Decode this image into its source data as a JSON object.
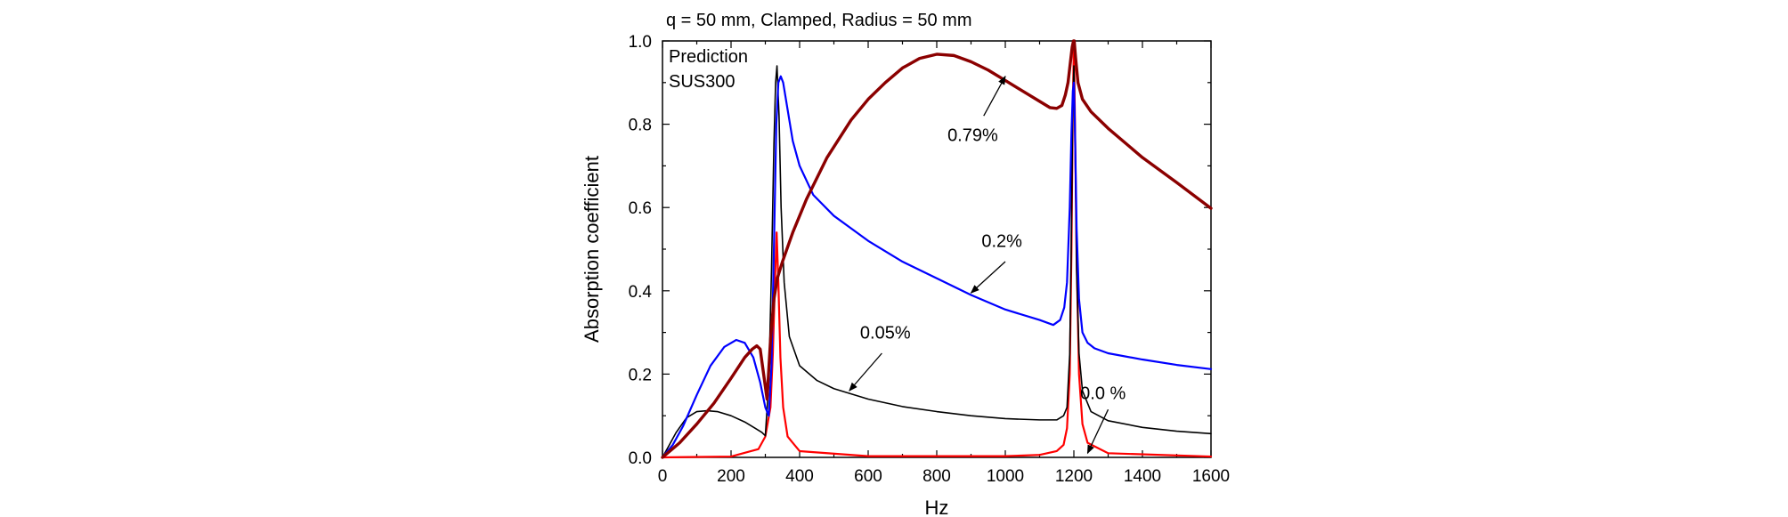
{
  "chart_data": {
    "type": "line",
    "title": "q = 50 mm, Clamped, Radius = 50 mm",
    "xlabel": "Hz",
    "ylabel": "Absorption coefficient",
    "xlim": [
      0,
      1600
    ],
    "ylim": [
      0,
      1.0
    ],
    "xticks": [
      0,
      200,
      400,
      600,
      800,
      1000,
      1200,
      1400,
      1600
    ],
    "xtick_labels": [
      "0",
      "200",
      "400",
      "600",
      "800",
      "1000",
      "1200",
      "1400",
      "1600"
    ],
    "yticks": [
      0,
      0.2,
      0.4,
      0.6,
      0.8,
      1.0
    ],
    "ytick_labels": [
      "0.0",
      "0.2",
      "0.4",
      "0.6",
      "0.8",
      "1.0"
    ],
    "inset_lines": [
      "Prediction",
      "SUS300"
    ],
    "grid": false,
    "series": [
      {
        "name": "0.0 %",
        "color": "#ff0000",
        "stroke_weight": "medium",
        "x": [
          0,
          200,
          280,
          300,
          315,
          322,
          328,
          333,
          338,
          344,
          352,
          365,
          400,
          600,
          1000,
          1100,
          1150,
          1170,
          1180,
          1188,
          1193,
          1197,
          1200,
          1203,
          1208,
          1215,
          1225,
          1240,
          1300,
          1600
        ],
        "y": [
          0,
          0.002,
          0.02,
          0.05,
          0.12,
          0.25,
          0.42,
          0.54,
          0.42,
          0.24,
          0.12,
          0.05,
          0.015,
          0.003,
          0.003,
          0.006,
          0.015,
          0.03,
          0.07,
          0.2,
          0.5,
          0.85,
          0.99,
          0.82,
          0.48,
          0.2,
          0.08,
          0.035,
          0.01,
          0.002
        ]
      },
      {
        "name": "0.05%",
        "color": "#000000",
        "stroke_weight": "thin",
        "x": [
          0,
          20,
          40,
          70,
          100,
          130,
          160,
          200,
          240,
          270,
          290,
          300,
          310,
          318,
          325,
          330,
          334,
          340,
          346,
          355,
          370,
          400,
          450,
          500,
          600,
          700,
          800,
          900,
          1000,
          1100,
          1150,
          1170,
          1180,
          1188,
          1193,
          1197,
          1200,
          1203,
          1208,
          1215,
          1225,
          1250,
          1300,
          1400,
          1500,
          1600
        ],
        "y": [
          0,
          0.03,
          0.06,
          0.095,
          0.11,
          0.112,
          0.11,
          0.1,
          0.085,
          0.07,
          0.06,
          0.052,
          0.18,
          0.45,
          0.75,
          0.9,
          0.94,
          0.82,
          0.6,
          0.42,
          0.29,
          0.22,
          0.185,
          0.165,
          0.14,
          0.122,
          0.11,
          0.1,
          0.093,
          0.09,
          0.09,
          0.1,
          0.12,
          0.25,
          0.55,
          0.85,
          0.94,
          0.8,
          0.45,
          0.25,
          0.16,
          0.11,
          0.088,
          0.072,
          0.063,
          0.057
        ]
      },
      {
        "name": "0.2%",
        "color": "#0000ff",
        "stroke_weight": "medium",
        "x": [
          0,
          30,
          60,
          100,
          140,
          180,
          215,
          240,
          265,
          285,
          300,
          310,
          318,
          325,
          332,
          338,
          345,
          352,
          362,
          380,
          400,
          440,
          500,
          600,
          700,
          800,
          900,
          1000,
          1100,
          1140,
          1160,
          1172,
          1180,
          1188,
          1193,
          1197,
          1200,
          1203,
          1208,
          1215,
          1225,
          1240,
          1260,
          1300,
          1400,
          1500,
          1600
        ],
        "y": [
          0,
          0.03,
          0.075,
          0.15,
          0.22,
          0.265,
          0.282,
          0.275,
          0.24,
          0.18,
          0.12,
          0.1,
          0.22,
          0.5,
          0.8,
          0.9,
          0.915,
          0.9,
          0.85,
          0.76,
          0.7,
          0.63,
          0.58,
          0.52,
          0.47,
          0.43,
          0.39,
          0.355,
          0.33,
          0.318,
          0.33,
          0.36,
          0.42,
          0.6,
          0.78,
          0.88,
          0.9,
          0.8,
          0.55,
          0.38,
          0.3,
          0.275,
          0.262,
          0.25,
          0.235,
          0.222,
          0.212
        ]
      },
      {
        "name": "0.79%",
        "color": "#8b0000",
        "stroke_weight": "thick",
        "x": [
          0,
          50,
          100,
          150,
          200,
          240,
          262,
          275,
          285,
          295,
          305,
          315,
          325,
          335,
          350,
          380,
          420,
          480,
          550,
          600,
          650,
          700,
          750,
          800,
          850,
          900,
          950,
          1000,
          1050,
          1100,
          1130,
          1150,
          1165,
          1175,
          1183,
          1190,
          1195,
          1199,
          1201,
          1205,
          1212,
          1225,
          1250,
          1300,
          1400,
          1500,
          1600
        ],
        "y": [
          0,
          0.035,
          0.08,
          0.13,
          0.19,
          0.24,
          0.26,
          0.268,
          0.26,
          0.2,
          0.14,
          0.28,
          0.38,
          0.43,
          0.47,
          0.54,
          0.62,
          0.72,
          0.81,
          0.86,
          0.9,
          0.935,
          0.958,
          0.968,
          0.965,
          0.95,
          0.93,
          0.905,
          0.88,
          0.855,
          0.84,
          0.838,
          0.845,
          0.87,
          0.9,
          0.95,
          0.985,
          1.0,
          1.0,
          0.96,
          0.9,
          0.86,
          0.83,
          0.79,
          0.72,
          0.66,
          0.598
        ]
      }
    ],
    "annotations": [
      {
        "text": "0.79%",
        "text_x": 905,
        "text_y": 0.775,
        "arrow_from": [
          937,
          0.82
        ],
        "arrow_to": [
          1000,
          0.915
        ]
      },
      {
        "text": "0.2%",
        "text_x": 990,
        "text_y": 0.52,
        "arrow_from": [
          1000,
          0.47
        ],
        "arrow_to": [
          900,
          0.395
        ]
      },
      {
        "text": "0.05%",
        "text_x": 650,
        "text_y": 0.3,
        "arrow_from": [
          640,
          0.25
        ],
        "arrow_to": [
          545,
          0.16
        ]
      },
      {
        "text": "0.0 %",
        "text_x": 1285,
        "text_y": 0.155,
        "arrow_from": [
          1300,
          0.115
        ],
        "arrow_to": [
          1240,
          0.01
        ]
      }
    ]
  }
}
